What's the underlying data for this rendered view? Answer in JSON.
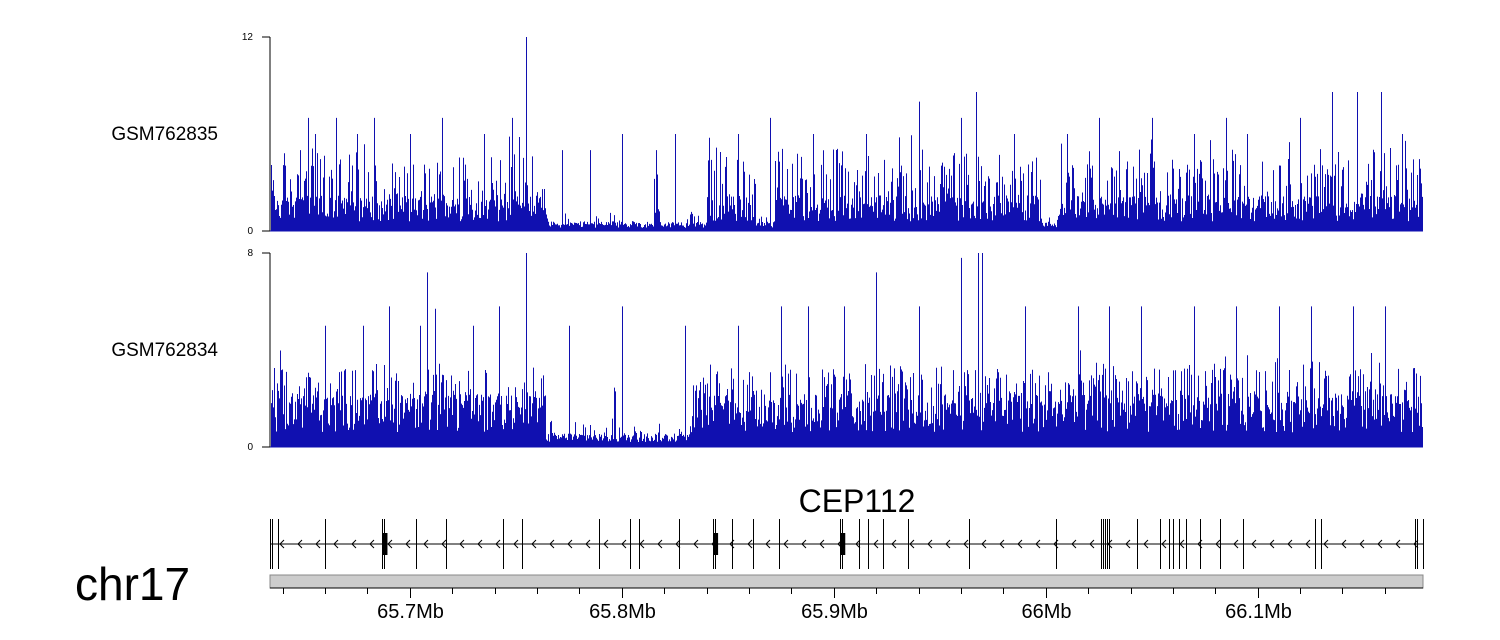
{
  "chart_data": {
    "type": "bar",
    "chromosome": "chr17",
    "x_range_mb": [
      65.634,
      66.178
    ],
    "colors": {
      "coverage": "#1010b0",
      "ideogram": "#cccccc",
      "gene": "#000000"
    },
    "tracks": [
      {
        "name": "GSM762835",
        "ylim": [
          0,
          12
        ],
        "y_ticks": [
          "12",
          "0"
        ],
        "peaks": [
          {
            "x": 65.648,
            "y": 5
          },
          {
            "x": 65.652,
            "y": 7
          },
          {
            "x": 65.655,
            "y": 6
          },
          {
            "x": 65.665,
            "y": 7
          },
          {
            "x": 65.675,
            "y": 6
          },
          {
            "x": 65.683,
            "y": 7
          },
          {
            "x": 65.7,
            "y": 6
          },
          {
            "x": 65.715,
            "y": 7
          },
          {
            "x": 65.735,
            "y": 6
          },
          {
            "x": 65.748,
            "y": 7
          },
          {
            "x": 65.755,
            "y": 12
          },
          {
            "x": 65.772,
            "y": 5
          },
          {
            "x": 65.785,
            "y": 5
          },
          {
            "x": 65.8,
            "y": 6
          },
          {
            "x": 65.825,
            "y": 6
          },
          {
            "x": 65.855,
            "y": 6
          },
          {
            "x": 65.87,
            "y": 7
          },
          {
            "x": 65.89,
            "y": 6
          },
          {
            "x": 65.915,
            "y": 6
          },
          {
            "x": 65.94,
            "y": 8
          },
          {
            "x": 65.96,
            "y": 7
          },
          {
            "x": 65.967,
            "y": 8.6
          },
          {
            "x": 65.985,
            "y": 6
          },
          {
            "x": 66.01,
            "y": 6
          },
          {
            "x": 66.025,
            "y": 7
          },
          {
            "x": 66.05,
            "y": 7
          },
          {
            "x": 66.07,
            "y": 6
          },
          {
            "x": 66.085,
            "y": 7
          },
          {
            "x": 66.095,
            "y": 6
          },
          {
            "x": 66.12,
            "y": 7
          },
          {
            "x": 66.135,
            "y": 8.6
          },
          {
            "x": 66.147,
            "y": 8.6
          },
          {
            "x": 66.158,
            "y": 8.6
          },
          {
            "x": 66.168,
            "y": 6
          }
        ],
        "gaps_mb": [
          [
            65.765,
            65.815
          ],
          [
            65.818,
            65.84
          ],
          [
            65.863,
            65.872
          ],
          [
            65.998,
            66.005
          ]
        ]
      },
      {
        "name": "GSM762834",
        "ylim": [
          0,
          8
        ],
        "y_ticks": [
          "8",
          "0"
        ],
        "peaks": [
          {
            "x": 65.66,
            "y": 5
          },
          {
            "x": 65.678,
            "y": 5
          },
          {
            "x": 65.69,
            "y": 5.8
          },
          {
            "x": 65.705,
            "y": 5
          },
          {
            "x": 65.708,
            "y": 7.2
          },
          {
            "x": 65.712,
            "y": 5.7
          },
          {
            "x": 65.73,
            "y": 5
          },
          {
            "x": 65.742,
            "y": 5.8
          },
          {
            "x": 65.755,
            "y": 8
          },
          {
            "x": 65.775,
            "y": 5
          },
          {
            "x": 65.8,
            "y": 5.8
          },
          {
            "x": 65.83,
            "y": 5
          },
          {
            "x": 65.855,
            "y": 5
          },
          {
            "x": 65.875,
            "y": 5.8
          },
          {
            "x": 65.888,
            "y": 5.8
          },
          {
            "x": 65.905,
            "y": 5.8
          },
          {
            "x": 65.92,
            "y": 7.2
          },
          {
            "x": 65.94,
            "y": 5.8
          },
          {
            "x": 65.96,
            "y": 7.8
          },
          {
            "x": 65.968,
            "y": 8
          },
          {
            "x": 65.97,
            "y": 8
          },
          {
            "x": 65.99,
            "y": 5.8
          },
          {
            "x": 66.015,
            "y": 5.8
          },
          {
            "x": 66.03,
            "y": 5.8
          },
          {
            "x": 66.045,
            "y": 5.8
          },
          {
            "x": 66.07,
            "y": 5.8
          },
          {
            "x": 66.09,
            "y": 5.8
          },
          {
            "x": 66.11,
            "y": 5.8
          },
          {
            "x": 66.125,
            "y": 5.8
          },
          {
            "x": 66.145,
            "y": 5.8
          },
          {
            "x": 66.16,
            "y": 5.8
          }
        ],
        "gaps_mb": [
          [
            65.764,
            65.796
          ],
          [
            65.797,
            65.832
          ]
        ]
      }
    ],
    "gene": {
      "name": "CEP112",
      "strand": "-",
      "exons_mb": [
        65.634,
        65.635,
        65.638,
        65.66,
        65.687,
        65.688,
        65.703,
        65.717,
        65.744,
        65.753,
        65.789,
        65.804,
        65.808,
        65.827,
        65.843,
        65.844,
        65.852,
        65.862,
        65.874,
        65.903,
        65.904,
        65.912,
        65.916,
        65.923,
        65.935,
        65.964,
        66.005,
        66.026,
        66.027,
        66.028,
        66.029,
        66.03,
        66.043,
        66.054,
        66.058,
        66.06,
        66.063,
        66.066,
        66.073,
        66.082,
        66.093,
        66.127,
        66.13,
        66.174,
        66.175,
        66.178
      ],
      "thick_exons_mb": [
        65.688,
        65.844,
        65.904
      ]
    },
    "xaxis": {
      "ticks_mb": [
        65.7,
        65.8,
        65.9,
        66.0,
        66.1
      ],
      "tick_labels": [
        "65.7Mb",
        "65.8Mb",
        "65.9Mb",
        "66Mb",
        "66.1Mb"
      ]
    }
  }
}
